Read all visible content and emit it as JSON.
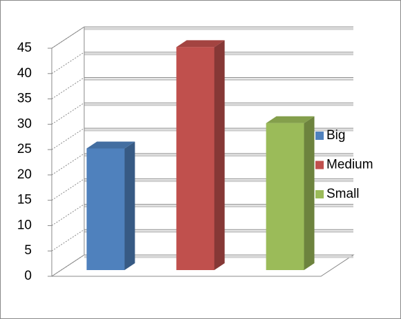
{
  "chart_data": {
    "type": "bar3d",
    "categories": [
      null
    ],
    "series": [
      {
        "name": "Big",
        "color": "#4f81bd",
        "values": [
          24
        ]
      },
      {
        "name": "Medium",
        "color": "#c0504d",
        "values": [
          44
        ]
      },
      {
        "name": "Small",
        "color": "#9bbb59",
        "values": [
          29
        ]
      }
    ],
    "ylim": [
      0,
      45
    ],
    "yticks": [
      0,
      5,
      10,
      15,
      20,
      25,
      30,
      35,
      40,
      45
    ],
    "grid": true,
    "legend": "right"
  }
}
